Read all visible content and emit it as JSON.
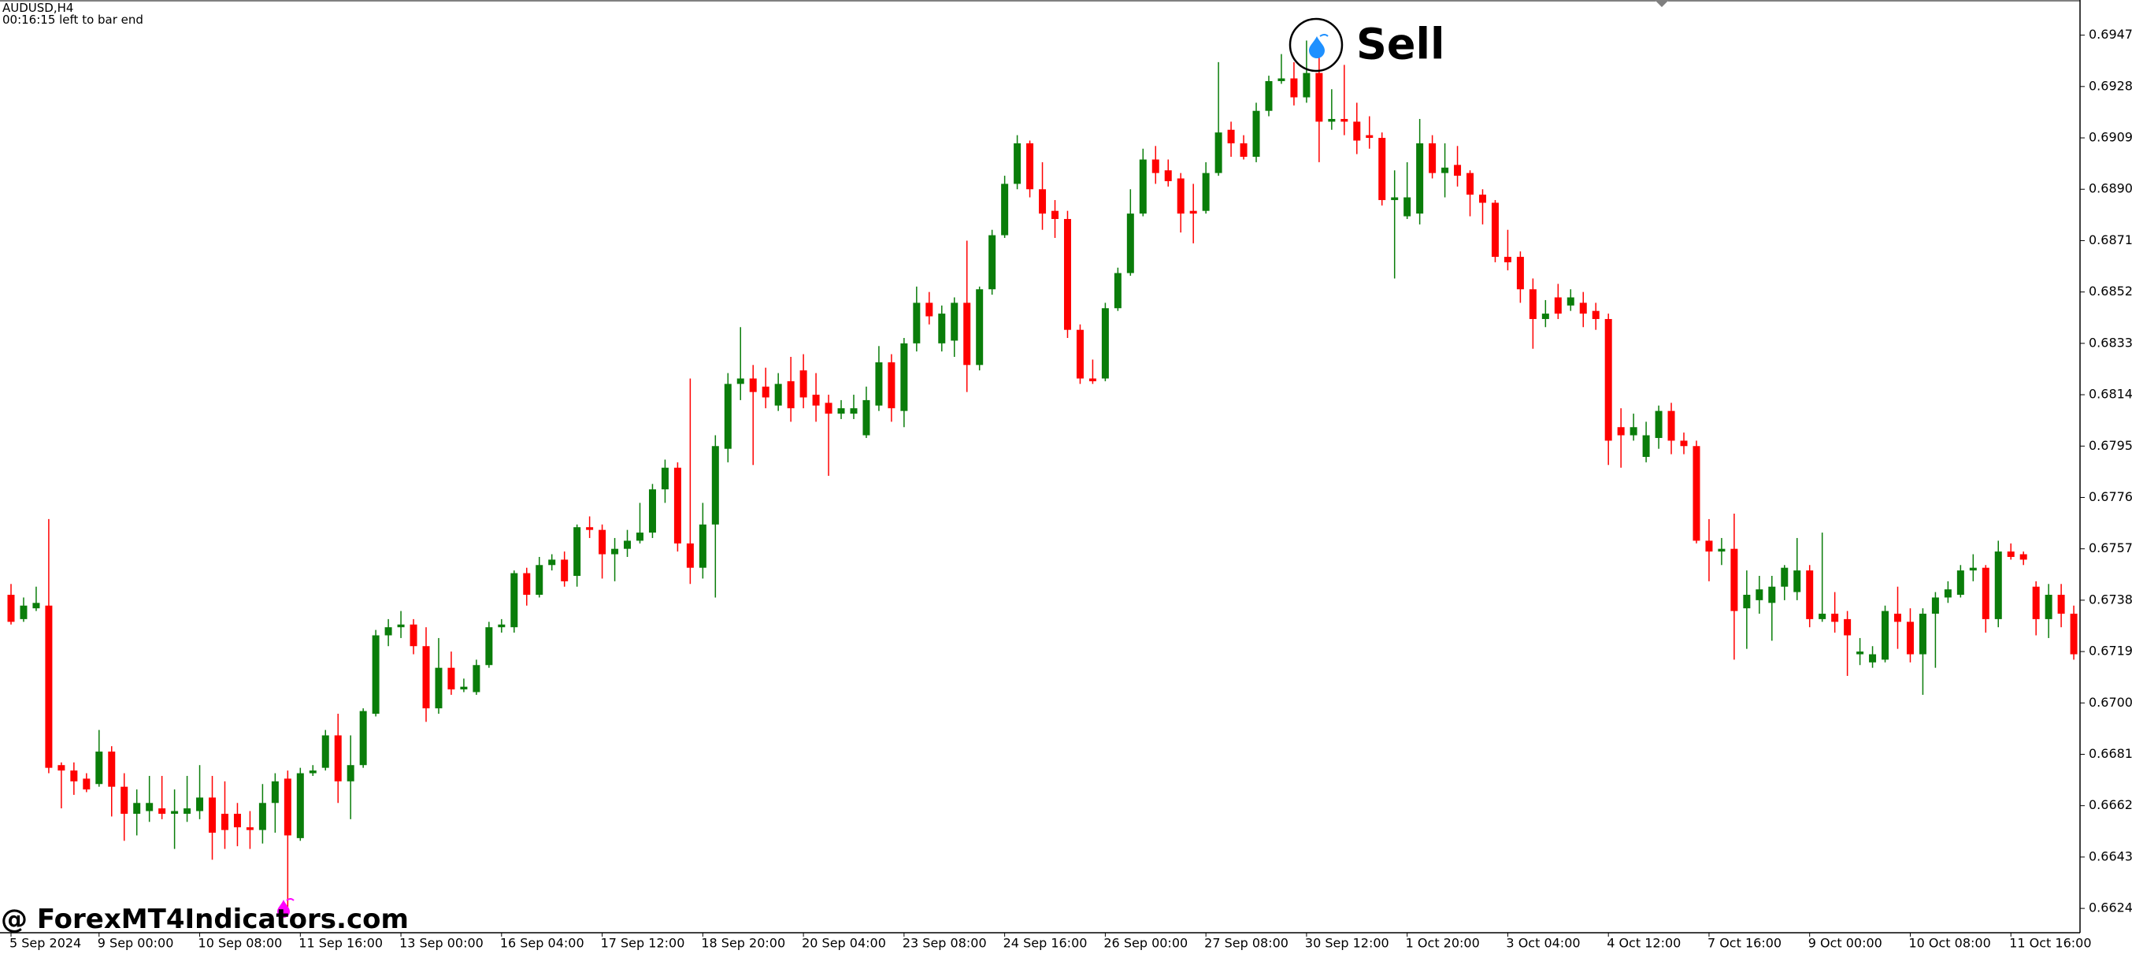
{
  "chart_data": {
    "type": "candlestick",
    "symbol": "AUDUSD,H4",
    "timer": "00:16:15 left to bar end",
    "signal": "Sell",
    "watermark": "@ ForexMT4Indicators.com",
    "up_color": "#0a7d0a",
    "down_color": "#ff0000",
    "ylim": [
      0.6615,
      0.696
    ],
    "yticks": [
      {
        "value": 0.6947,
        "label": "0.69470"
      },
      {
        "value": 0.6928,
        "label": "0.69280"
      },
      {
        "value": 0.6909,
        "label": "0.69090"
      },
      {
        "value": 0.689,
        "label": "0.68900"
      },
      {
        "value": 0.6871,
        "label": "0.68710"
      },
      {
        "value": 0.6852,
        "label": "0.68520"
      },
      {
        "value": 0.6833,
        "label": "0.68330"
      },
      {
        "value": 0.6814,
        "label": "0.68140"
      },
      {
        "value": 0.6795,
        "label": "0.67950"
      },
      {
        "value": 0.6776,
        "label": "0.67760"
      },
      {
        "value": 0.6757,
        "label": "0.67570"
      },
      {
        "value": 0.6738,
        "label": "0.67380"
      },
      {
        "value": 0.6719,
        "label": "0.67190"
      },
      {
        "value": 0.67,
        "label": "0.67000"
      },
      {
        "value": 0.6681,
        "label": "0.66810"
      },
      {
        "value": 0.6662,
        "label": "0.66620"
      },
      {
        "value": 0.6643,
        "label": "0.66430"
      },
      {
        "value": 0.6624,
        "label": "0.66240"
      }
    ],
    "categories": [
      "5 Sep 2024",
      null,
      null,
      null,
      null,
      null,
      null,
      "9 Sep 00:00",
      null,
      null,
      null,
      null,
      null,
      null,
      null,
      "10 Sep 08:00",
      null,
      null,
      null,
      null,
      null,
      null,
      null,
      "11 Sep 16:00",
      null,
      null,
      null,
      null,
      null,
      null,
      null,
      "13 Sep 00:00",
      null,
      null,
      null,
      null,
      null,
      null,
      null,
      "16 Sep 04:00",
      null,
      null,
      null,
      null,
      null,
      null,
      null,
      "17 Sep 12:00",
      null,
      null,
      null,
      null,
      null,
      null,
      null,
      "18 Sep 20:00",
      null,
      null,
      null,
      null,
      null,
      null,
      null,
      "20 Sep 04:00",
      null,
      null,
      null,
      null,
      null,
      null,
      null,
      "23 Sep 08:00",
      null,
      null,
      null,
      null,
      null,
      null,
      null,
      "24 Sep 16:00",
      null,
      null,
      null,
      null,
      null,
      null,
      null,
      "26 Sep 00:00",
      null,
      null,
      null,
      null,
      null,
      null,
      null,
      "27 Sep 08:00",
      null,
      null,
      null,
      null,
      null,
      null,
      null,
      "30 Sep 12:00",
      null,
      null,
      null,
      null,
      null,
      null,
      null,
      "1 Oct 20:00",
      null,
      null,
      null,
      null,
      null,
      null,
      null,
      "3 Oct 04:00",
      null,
      null,
      null,
      null,
      null,
      null,
      null,
      "4 Oct 12:00",
      null,
      null,
      null,
      null,
      null,
      null,
      null,
      "7 Oct 16:00",
      null,
      null,
      null,
      null,
      null,
      null,
      null,
      "9 Oct 00:00",
      null,
      null,
      null,
      null,
      null,
      null,
      null,
      "10 Oct 08:00",
      null,
      null,
      null,
      null,
      null,
      null,
      null,
      "11 Oct 16:00",
      null,
      null,
      null,
      null,
      null
    ],
    "ohlc": [
      [
        0.674,
        0.6744,
        0.6729,
        0.673
      ],
      [
        0.6731,
        0.6739,
        0.673,
        0.6736
      ],
      [
        0.6735,
        0.6743,
        0.6734,
        0.6737
      ],
      [
        0.6736,
        0.6768,
        0.6674,
        0.6676
      ],
      [
        0.6677,
        0.6678,
        0.6661,
        0.6675
      ],
      [
        0.6675,
        0.6678,
        0.6666,
        0.6671
      ],
      [
        0.6672,
        0.6674,
        0.6667,
        0.6668
      ],
      [
        0.667,
        0.669,
        0.6669,
        0.6682
      ],
      [
        0.6682,
        0.6684,
        0.6658,
        0.6669
      ],
      [
        0.6669,
        0.6674,
        0.6649,
        0.6659
      ],
      [
        0.6659,
        0.6668,
        0.6651,
        0.6663
      ],
      [
        0.666,
        0.6673,
        0.6656,
        0.6663
      ],
      [
        0.6661,
        0.6673,
        0.6657,
        0.6659
      ],
      [
        0.6659,
        0.6668,
        0.6646,
        0.666
      ],
      [
        0.6659,
        0.6673,
        0.6656,
        0.6661
      ],
      [
        0.666,
        0.6677,
        0.6657,
        0.6665
      ],
      [
        0.6665,
        0.6673,
        0.6642,
        0.6652
      ],
      [
        0.6659,
        0.6671,
        0.6646,
        0.6653
      ],
      [
        0.6659,
        0.6663,
        0.6647,
        0.6654
      ],
      [
        0.6654,
        0.666,
        0.6646,
        0.6653
      ],
      [
        0.6653,
        0.667,
        0.6648,
        0.6663
      ],
      [
        0.6663,
        0.6674,
        0.6652,
        0.6671
      ],
      [
        0.6672,
        0.6675,
        0.6624,
        0.6651
      ],
      [
        0.665,
        0.6676,
        0.6649,
        0.6674
      ],
      [
        0.6674,
        0.6677,
        0.6673,
        0.6675
      ],
      [
        0.6676,
        0.669,
        0.6675,
        0.6688
      ],
      [
        0.6688,
        0.6696,
        0.6663,
        0.6671
      ],
      [
        0.6671,
        0.6688,
        0.6657,
        0.6677
      ],
      [
        0.6677,
        0.6698,
        0.6676,
        0.6697
      ],
      [
        0.6696,
        0.6727,
        0.6695,
        0.6725
      ],
      [
        0.6725,
        0.6731,
        0.6721,
        0.6728
      ],
      [
        0.6728,
        0.6734,
        0.6724,
        0.6729
      ],
      [
        0.6729,
        0.6731,
        0.6718,
        0.6721
      ],
      [
        0.6721,
        0.6728,
        0.6693,
        0.6698
      ],
      [
        0.6698,
        0.6724,
        0.6696,
        0.6713
      ],
      [
        0.6713,
        0.6719,
        0.6703,
        0.6705
      ],
      [
        0.6705,
        0.6709,
        0.6704,
        0.6706
      ],
      [
        0.6704,
        0.6716,
        0.6703,
        0.6714
      ],
      [
        0.6714,
        0.673,
        0.6713,
        0.6728
      ],
      [
        0.6728,
        0.6731,
        0.6726,
        0.6729
      ],
      [
        0.6728,
        0.6749,
        0.6726,
        0.6748
      ],
      [
        0.6748,
        0.675,
        0.6736,
        0.674
      ],
      [
        0.674,
        0.6754,
        0.6739,
        0.6751
      ],
      [
        0.6751,
        0.6755,
        0.6749,
        0.6753
      ],
      [
        0.6753,
        0.6756,
        0.6743,
        0.6745
      ],
      [
        0.6747,
        0.6766,
        0.6743,
        0.6765
      ],
      [
        0.6765,
        0.6769,
        0.6761,
        0.6764
      ],
      [
        0.6764,
        0.6766,
        0.6746,
        0.6755
      ],
      [
        0.6755,
        0.6761,
        0.6745,
        0.6757
      ],
      [
        0.6757,
        0.6764,
        0.6754,
        0.676
      ],
      [
        0.676,
        0.6774,
        0.6759,
        0.6763
      ],
      [
        0.6763,
        0.6781,
        0.6761,
        0.6779
      ],
      [
        0.6779,
        0.679,
        0.6774,
        0.6787
      ],
      [
        0.6787,
        0.6789,
        0.6756,
        0.6759
      ],
      [
        0.6759,
        0.682,
        0.6744,
        0.675
      ],
      [
        0.675,
        0.6774,
        0.6746,
        0.6766
      ],
      [
        0.6766,
        0.6799,
        0.6739,
        0.6795
      ],
      [
        0.6794,
        0.6822,
        0.6789,
        0.6818
      ],
      [
        0.6818,
        0.6839,
        0.6812,
        0.682
      ],
      [
        0.682,
        0.6825,
        0.6788,
        0.6815
      ],
      [
        0.6817,
        0.6824,
        0.6809,
        0.6813
      ],
      [
        0.681,
        0.6822,
        0.6808,
        0.6818
      ],
      [
        0.6819,
        0.6828,
        0.6804,
        0.6809
      ],
      [
        0.6823,
        0.6829,
        0.6809,
        0.6813
      ],
      [
        0.6814,
        0.6822,
        0.6804,
        0.681
      ],
      [
        0.6811,
        0.6814,
        0.6784,
        0.6807
      ],
      [
        0.6807,
        0.6812,
        0.6805,
        0.6809
      ],
      [
        0.6807,
        0.6814,
        0.6805,
        0.6809
      ],
      [
        0.6799,
        0.6817,
        0.6798,
        0.6812
      ],
      [
        0.681,
        0.6832,
        0.6808,
        0.6826
      ],
      [
        0.6826,
        0.6829,
        0.6804,
        0.6809
      ],
      [
        0.6808,
        0.6835,
        0.6802,
        0.6833
      ],
      [
        0.6833,
        0.6854,
        0.683,
        0.6848
      ],
      [
        0.6848,
        0.6852,
        0.684,
        0.6843
      ],
      [
        0.6833,
        0.6847,
        0.683,
        0.6844
      ],
      [
        0.6834,
        0.685,
        0.6828,
        0.6848
      ],
      [
        0.6848,
        0.6871,
        0.6815,
        0.6825
      ],
      [
        0.6825,
        0.6854,
        0.6823,
        0.6853
      ],
      [
        0.6853,
        0.6875,
        0.6851,
        0.6873
      ],
      [
        0.6873,
        0.6895,
        0.6872,
        0.6892
      ],
      [
        0.6892,
        0.691,
        0.689,
        0.6907
      ],
      [
        0.6907,
        0.6908,
        0.6887,
        0.689
      ],
      [
        0.689,
        0.69,
        0.6875,
        0.6881
      ],
      [
        0.6882,
        0.6886,
        0.6872,
        0.6879
      ],
      [
        0.6879,
        0.6882,
        0.6835,
        0.6838
      ],
      [
        0.6838,
        0.684,
        0.6818,
        0.682
      ],
      [
        0.682,
        0.6827,
        0.6818,
        0.6819
      ],
      [
        0.682,
        0.6848,
        0.6819,
        0.6846
      ],
      [
        0.6846,
        0.6861,
        0.6845,
        0.6859
      ],
      [
        0.6859,
        0.689,
        0.6858,
        0.6881
      ],
      [
        0.6881,
        0.6905,
        0.688,
        0.6901
      ],
      [
        0.6901,
        0.6906,
        0.6892,
        0.6896
      ],
      [
        0.6897,
        0.6901,
        0.6891,
        0.6893
      ],
      [
        0.6894,
        0.6896,
        0.6874,
        0.6881
      ],
      [
        0.6882,
        0.6892,
        0.687,
        0.6881
      ],
      [
        0.6882,
        0.69,
        0.6881,
        0.6896
      ],
      [
        0.6896,
        0.6937,
        0.6895,
        0.6911
      ],
      [
        0.6912,
        0.6915,
        0.6902,
        0.6907
      ],
      [
        0.6907,
        0.691,
        0.6901,
        0.6902
      ],
      [
        0.6902,
        0.6922,
        0.69,
        0.6919
      ],
      [
        0.6919,
        0.6932,
        0.6917,
        0.693
      ],
      [
        0.693,
        0.694,
        0.6929,
        0.6931
      ],
      [
        0.6931,
        0.6937,
        0.6921,
        0.6924
      ],
      [
        0.6924,
        0.6945,
        0.6922,
        0.6933
      ],
      [
        0.6933,
        0.6942,
        0.69,
        0.6915
      ],
      [
        0.6915,
        0.6927,
        0.6912,
        0.6916
      ],
      [
        0.6916,
        0.6936,
        0.691,
        0.6915
      ],
      [
        0.6915,
        0.6922,
        0.6903,
        0.6908
      ],
      [
        0.691,
        0.6917,
        0.6905,
        0.6909
      ],
      [
        0.6909,
        0.6911,
        0.6884,
        0.6886
      ],
      [
        0.6886,
        0.6897,
        0.6857,
        0.6887
      ],
      [
        0.688,
        0.69,
        0.6879,
        0.6887
      ],
      [
        0.6881,
        0.6916,
        0.6877,
        0.6907
      ],
      [
        0.6907,
        0.691,
        0.6894,
        0.6896
      ],
      [
        0.6896,
        0.6907,
        0.6887,
        0.6898
      ],
      [
        0.6899,
        0.6906,
        0.6891,
        0.6895
      ],
      [
        0.6896,
        0.6897,
        0.688,
        0.6888
      ],
      [
        0.6888,
        0.689,
        0.6877,
        0.6885
      ],
      [
        0.6885,
        0.6886,
        0.6863,
        0.6865
      ],
      [
        0.6865,
        0.6875,
        0.686,
        0.6863
      ],
      [
        0.6865,
        0.6867,
        0.6848,
        0.6853
      ],
      [
        0.6853,
        0.6857,
        0.6831,
        0.6842
      ],
      [
        0.6842,
        0.6849,
        0.6839,
        0.6844
      ],
      [
        0.685,
        0.6855,
        0.6842,
        0.6844
      ],
      [
        0.6847,
        0.6853,
        0.6845,
        0.685
      ],
      [
        0.6848,
        0.6852,
        0.6839,
        0.6844
      ],
      [
        0.6845,
        0.6848,
        0.6838,
        0.6842
      ],
      [
        0.6842,
        0.6844,
        0.6788,
        0.6797
      ],
      [
        0.6802,
        0.6809,
        0.6787,
        0.6799
      ],
      [
        0.6799,
        0.6807,
        0.6797,
        0.6802
      ],
      [
        0.6791,
        0.6804,
        0.6789,
        0.6799
      ],
      [
        0.6798,
        0.681,
        0.6794,
        0.6808
      ],
      [
        0.6808,
        0.6811,
        0.6792,
        0.6797
      ],
      [
        0.6797,
        0.68,
        0.6792,
        0.6795
      ],
      [
        0.6795,
        0.6797,
        0.6759,
        0.676
      ],
      [
        0.676,
        0.6768,
        0.6745,
        0.6756
      ],
      [
        0.6756,
        0.6761,
        0.6751,
        0.6757
      ],
      [
        0.6757,
        0.677,
        0.6716,
        0.6734
      ],
      [
        0.6735,
        0.6749,
        0.672,
        0.674
      ],
      [
        0.6738,
        0.6747,
        0.6733,
        0.6742
      ],
      [
        0.6737,
        0.6747,
        0.6723,
        0.6743
      ],
      [
        0.6743,
        0.6751,
        0.6738,
        0.675
      ],
      [
        0.6741,
        0.6761,
        0.6738,
        0.6749
      ],
      [
        0.6749,
        0.6751,
        0.6728,
        0.6731
      ],
      [
        0.6731,
        0.6763,
        0.673,
        0.6733
      ],
      [
        0.6733,
        0.6741,
        0.6726,
        0.673
      ],
      [
        0.6731,
        0.6734,
        0.671,
        0.6725
      ],
      [
        0.6718,
        0.6724,
        0.6714,
        0.6719
      ],
      [
        0.6715,
        0.6721,
        0.6713,
        0.6718
      ],
      [
        0.6716,
        0.6736,
        0.6715,
        0.6734
      ],
      [
        0.6733,
        0.6743,
        0.672,
        0.673
      ],
      [
        0.673,
        0.6735,
        0.6715,
        0.6718
      ],
      [
        0.6718,
        0.6735,
        0.6703,
        0.6733
      ],
      [
        0.6733,
        0.6741,
        0.6713,
        0.6739
      ],
      [
        0.6739,
        0.6745,
        0.6737,
        0.6742
      ],
      [
        0.674,
        0.6751,
        0.6739,
        0.6749
      ],
      [
        0.6749,
        0.6755,
        0.6745,
        0.675
      ],
      [
        0.675,
        0.6751,
        0.6726,
        0.6731
      ],
      [
        0.6731,
        0.676,
        0.6728,
        0.6756
      ],
      [
        0.6756,
        0.6759,
        0.6753,
        0.6754
      ],
      [
        0.6755,
        0.6756,
        0.6751,
        0.6753
      ],
      [
        0.6743,
        0.6745,
        0.6725,
        0.6731
      ],
      [
        0.6731,
        0.6744,
        0.6724,
        0.674
      ],
      [
        0.674,
        0.6744,
        0.6728,
        0.6733
      ],
      [
        0.6733,
        0.6736,
        0.6716,
        0.6718
      ]
    ]
  }
}
